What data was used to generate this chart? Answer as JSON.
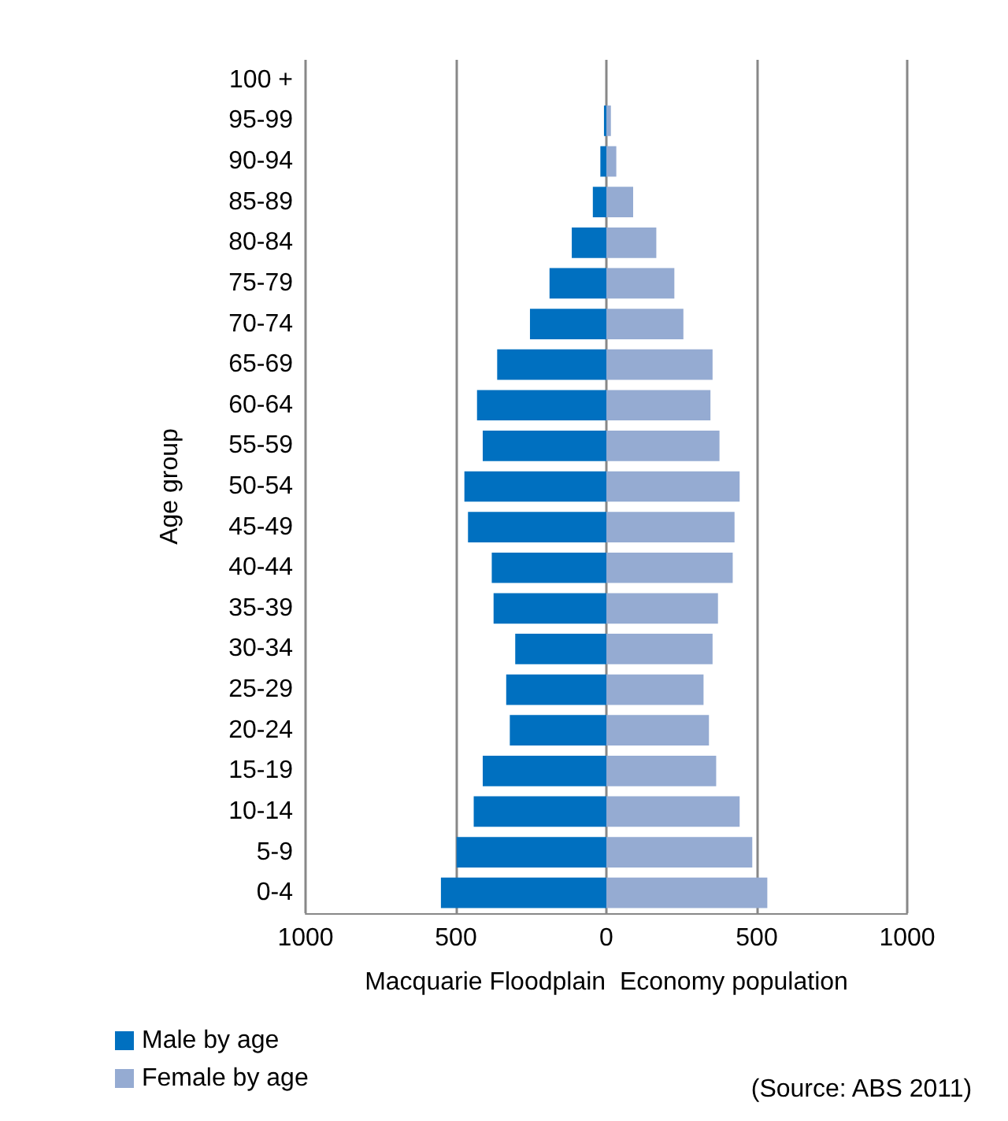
{
  "chart_data": {
    "type": "bar",
    "orientation": "horizontal",
    "stacked": true,
    "ylabel": "Age group",
    "xlabel": "Macquarie Floodplain  Economy population",
    "categories": [
      "100 +",
      "95-99",
      "90-94",
      "85-89",
      "80-84",
      "75-79",
      "70-74",
      "65-69",
      "60-64",
      "55-59",
      "50-54",
      "45-49",
      "40-44",
      "35-39",
      "30-34",
      "25-29",
      "20-24",
      "15-19",
      "10-14",
      "5-9",
      "0-4"
    ],
    "series": [
      {
        "name": "Male by age",
        "color": "#0070c0",
        "values": [
          0,
          -8,
          -20,
          -45,
          -115,
          -189,
          -254,
          -363,
          -430,
          -411,
          -472,
          -460,
          -381,
          -375,
          -303,
          -333,
          -321,
          -411,
          -441,
          -498,
          -550
        ]
      },
      {
        "name": "Female by age",
        "color": "#95abd2",
        "values": [
          0,
          15,
          33,
          89,
          166,
          226,
          256,
          353,
          346,
          376,
          443,
          426,
          420,
          371,
          353,
          323,
          341,
          365,
          443,
          485,
          535
        ]
      }
    ],
    "xlim": [
      -1000,
      1000
    ],
    "xticks": [
      {
        "value": -1000,
        "label": "1000"
      },
      {
        "value": -500,
        "label": "500"
      },
      0,
      500,
      1000
    ],
    "grid": "x",
    "legend": "bottom left",
    "annotations": [
      "(Source: ABS 2011)"
    ]
  }
}
